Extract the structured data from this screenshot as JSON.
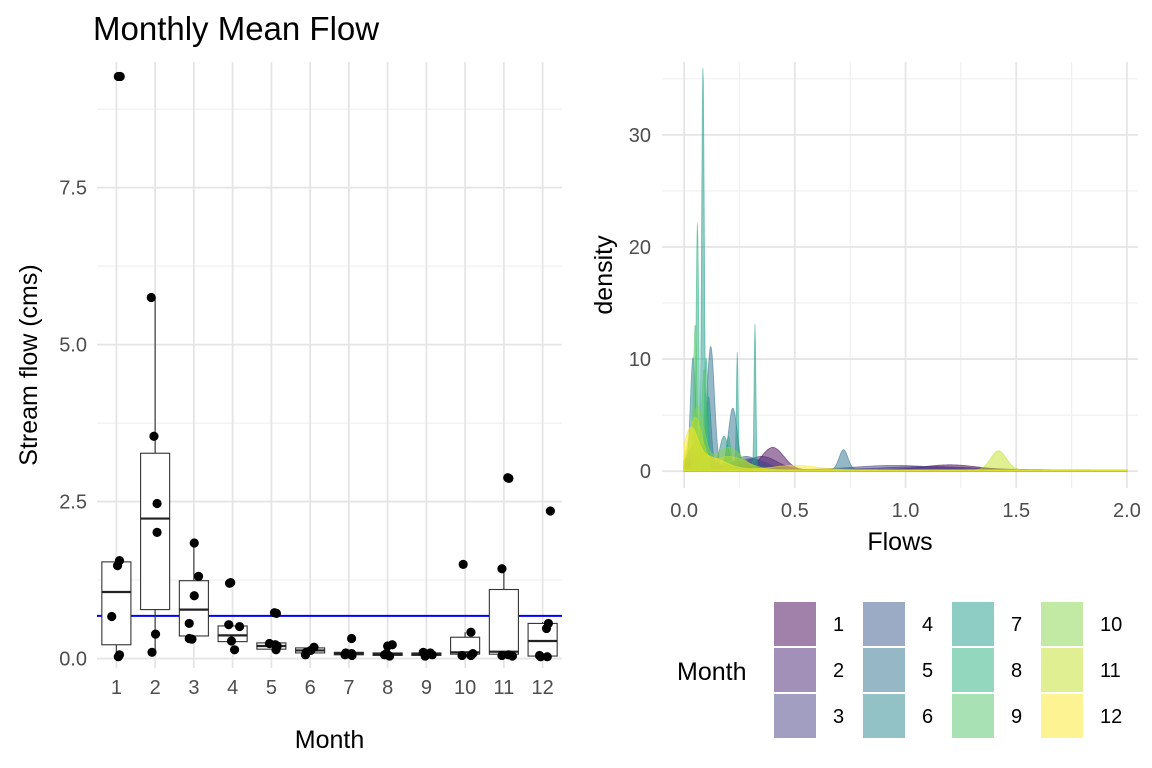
{
  "chart_data": [
    {
      "type": "boxplot",
      "title": "Monthly Mean Flow",
      "xlabel": "Month",
      "ylabel": "Stream flow (cms)",
      "categories": [
        "1",
        "2",
        "3",
        "4",
        "5",
        "6",
        "7",
        "8",
        "9",
        "10",
        "11",
        "12"
      ],
      "ylim": [
        -0.15,
        9.5
      ],
      "yticks": [
        0,
        2.5,
        5,
        7.5
      ],
      "ytick_labels": [
        "0.0",
        "2.5",
        "5.0",
        "7.5"
      ],
      "grid": true,
      "reference_line": {
        "y": 0.68,
        "color": "#0000ff"
      },
      "boxes": [
        {
          "month": "1",
          "q1": 0.22,
          "median": 1.06,
          "q3": 1.54,
          "lower": 0.05,
          "upper": 1.56
        },
        {
          "month": "2",
          "q1": 0.78,
          "median": 2.23,
          "q3": 3.27,
          "lower": 0.1,
          "upper": 5.75
        },
        {
          "month": "3",
          "q1": 0.36,
          "median": 0.78,
          "q3": 1.24,
          "lower": 0.32,
          "upper": 1.84
        },
        {
          "month": "4",
          "q1": 0.27,
          "median": 0.37,
          "q3": 0.52,
          "lower": 0.25,
          "upper": 0.52
        },
        {
          "month": "5",
          "q1": 0.15,
          "median": 0.2,
          "q3": 0.25,
          "lower": 0.15,
          "upper": 0.25
        },
        {
          "month": "6",
          "q1": 0.09,
          "median": 0.13,
          "q3": 0.17,
          "lower": 0.06,
          "upper": 0.2
        },
        {
          "month": "7",
          "q1": 0.06,
          "median": 0.08,
          "q3": 0.1,
          "lower": 0.05,
          "upper": 0.1
        },
        {
          "month": "8",
          "q1": 0.05,
          "median": 0.07,
          "q3": 0.09,
          "lower": 0.04,
          "upper": 0.09
        },
        {
          "month": "9",
          "q1": 0.05,
          "median": 0.07,
          "q3": 0.09,
          "lower": 0.04,
          "upper": 0.09
        },
        {
          "month": "10",
          "q1": 0.07,
          "median": 0.1,
          "q3": 0.34,
          "lower": 0.04,
          "upper": 0.42
        },
        {
          "month": "11",
          "q1": 0.07,
          "median": 0.11,
          "q3": 1.1,
          "lower": 0.03,
          "upper": 1.43
        },
        {
          "month": "12",
          "q1": 0.04,
          "median": 0.28,
          "q3": 0.56,
          "lower": 0.03,
          "upper": 0.58
        }
      ],
      "points": [
        {
          "month": "1",
          "j": 0.05,
          "y": 9.27
        },
        {
          "month": "1",
          "j": 0.08,
          "y": 1.56
        },
        {
          "month": "1",
          "j": 0.03,
          "y": 1.48
        },
        {
          "month": "1",
          "j": -0.12,
          "y": 0.67
        },
        {
          "month": "1",
          "j": 0.08,
          "y": 0.06
        },
        {
          "month": "1",
          "j": 0.05,
          "y": 0.03
        },
        {
          "month": "1",
          "j": 0.1,
          "y": 9.27
        },
        {
          "month": "2",
          "j": -0.1,
          "y": 5.75
        },
        {
          "month": "2",
          "j": -0.03,
          "y": 3.54
        },
        {
          "month": "2",
          "j": 0.05,
          "y": 2.47
        },
        {
          "month": "2",
          "j": 0.05,
          "y": 2.01
        },
        {
          "month": "2",
          "j": 0.01,
          "y": 0.39
        },
        {
          "month": "2",
          "j": -0.08,
          "y": 0.1
        },
        {
          "month": "3",
          "j": 0.01,
          "y": 1.84
        },
        {
          "month": "3",
          "j": 0.12,
          "y": 1.31
        },
        {
          "month": "3",
          "j": 0.01,
          "y": 1.0
        },
        {
          "month": "3",
          "j": -0.12,
          "y": 0.56
        },
        {
          "month": "3",
          "j": -0.12,
          "y": 0.32
        },
        {
          "month": "3",
          "j": -0.05,
          "y": 0.31
        },
        {
          "month": "4",
          "j": -0.08,
          "y": 1.2
        },
        {
          "month": "4",
          "j": -0.05,
          "y": 1.21
        },
        {
          "month": "4",
          "j": 0.18,
          "y": 0.51
        },
        {
          "month": "4",
          "j": -0.1,
          "y": 0.54
        },
        {
          "month": "4",
          "j": -0.03,
          "y": 0.28
        },
        {
          "month": "4",
          "j": 0.05,
          "y": 0.14
        },
        {
          "month": "5",
          "j": 0.08,
          "y": 0.73
        },
        {
          "month": "5",
          "j": 0.13,
          "y": 0.72
        },
        {
          "month": "5",
          "j": -0.05,
          "y": 0.24
        },
        {
          "month": "5",
          "j": 0.1,
          "y": 0.22
        },
        {
          "month": "5",
          "j": 0.15,
          "y": 0.2
        },
        {
          "month": "5",
          "j": 0.12,
          "y": 0.14
        },
        {
          "month": "6",
          "j": 0.1,
          "y": 0.18
        },
        {
          "month": "6",
          "j": 0.02,
          "y": 0.13
        },
        {
          "month": "6",
          "j": -0.1,
          "y": 0.1
        },
        {
          "month": "6",
          "j": -0.12,
          "y": 0.06
        },
        {
          "month": "7",
          "j": 0.07,
          "y": 0.32
        },
        {
          "month": "7",
          "j": -0.08,
          "y": 0.09
        },
        {
          "month": "7",
          "j": 0.07,
          "y": 0.08
        },
        {
          "month": "7",
          "j": -0.1,
          "y": 0.06
        },
        {
          "month": "7",
          "j": 0.08,
          "y": 0.05
        },
        {
          "month": "8",
          "j": 0.0,
          "y": 0.2
        },
        {
          "month": "8",
          "j": 0.12,
          "y": 0.22
        },
        {
          "month": "8",
          "j": -0.03,
          "y": 0.08
        },
        {
          "month": "8",
          "j": -0.08,
          "y": 0.06
        },
        {
          "month": "8",
          "j": 0.05,
          "y": 0.04
        },
        {
          "month": "9",
          "j": -0.08,
          "y": 0.1
        },
        {
          "month": "9",
          "j": 0.1,
          "y": 0.09
        },
        {
          "month": "9",
          "j": 0.15,
          "y": 0.06
        },
        {
          "month": "9",
          "j": -0.03,
          "y": 0.04
        },
        {
          "month": "10",
          "j": -0.05,
          "y": 1.5
        },
        {
          "month": "10",
          "j": 0.15,
          "y": 0.42
        },
        {
          "month": "10",
          "j": 0.2,
          "y": 0.08
        },
        {
          "month": "10",
          "j": -0.08,
          "y": 0.05
        },
        {
          "month": "10",
          "j": 0.15,
          "y": 0.05
        },
        {
          "month": "11",
          "j": 0.1,
          "y": 2.88
        },
        {
          "month": "11",
          "j": 0.13,
          "y": 2.87
        },
        {
          "month": "11",
          "j": -0.05,
          "y": 1.43
        },
        {
          "month": "11",
          "j": 0.12,
          "y": 0.06
        },
        {
          "month": "11",
          "j": -0.05,
          "y": 0.05
        },
        {
          "month": "11",
          "j": 0.22,
          "y": 0.04
        },
        {
          "month": "12",
          "j": 0.2,
          "y": 2.35
        },
        {
          "month": "12",
          "j": 0.15,
          "y": 0.56
        },
        {
          "month": "12",
          "j": 0.1,
          "y": 0.48
        },
        {
          "month": "12",
          "j": -0.08,
          "y": 0.05
        },
        {
          "month": "12",
          "j": 0.12,
          "y": 0.03
        },
        {
          "month": "12",
          "j": -0.05,
          "y": 0.03
        }
      ]
    },
    {
      "type": "area",
      "xlabel": "Flows",
      "ylabel": "density",
      "xlim": [
        -0.1,
        2.05
      ],
      "ylim": [
        -1.5,
        36.5
      ],
      "xticks": [
        0,
        0.5,
        1,
        1.5,
        2
      ],
      "xtick_labels": [
        "0.0",
        "0.5",
        "1.0",
        "1.5",
        "2.0"
      ],
      "yticks": [
        0,
        10,
        20,
        30
      ],
      "ytick_labels": [
        "0",
        "10",
        "20",
        "30"
      ],
      "grid": true,
      "legend": {
        "title": "Month",
        "position": "bottom",
        "ncol": 4
      },
      "series": [
        {
          "name": "1",
          "color": "#440154",
          "peaks": [
            [
              0.05,
              1.5,
              0.03
            ],
            [
              0.4,
              2.0,
              0.05
            ],
            [
              1.2,
              0.45,
              0.12
            ]
          ]
        },
        {
          "name": "2",
          "color": "#482173",
          "peaks": [
            [
              0.08,
              1.4,
              0.05
            ],
            [
              0.35,
              1.2,
              0.07
            ],
            [
              1.1,
              0.3,
              0.2
            ]
          ]
        },
        {
          "name": "3",
          "color": "#433e85",
          "peaks": [
            [
              0.06,
              1.6,
              0.05
            ],
            [
              0.3,
              1.0,
              0.07
            ],
            [
              0.95,
              0.4,
              0.18
            ]
          ]
        },
        {
          "name": "4",
          "color": "#38588c",
          "peaks": [
            [
              0.06,
              2.5,
              0.04
            ],
            [
              0.28,
              1.2,
              0.06
            ]
          ]
        },
        {
          "name": "5",
          "color": "#2d708e",
          "peaks": [
            [
              0.12,
              11.0,
              0.017
            ],
            [
              0.22,
              5.5,
              0.02
            ],
            [
              0.72,
              1.8,
              0.02
            ]
          ]
        },
        {
          "name": "6",
          "color": "#25858e",
          "peaks": [
            [
              0.04,
              10.0,
              0.012
            ],
            [
              0.11,
              6.5,
              0.012
            ],
            [
              0.18,
              3.0,
              0.02
            ]
          ]
        },
        {
          "name": "7",
          "color": "#1e9b8a",
          "peaks": [
            [
              0.085,
              36.0,
              0.006
            ],
            [
              0.24,
              10.5,
              0.004
            ],
            [
              0.32,
              13.0,
              0.004
            ]
          ]
        },
        {
          "name": "8",
          "color": "#2ab07f",
          "peaks": [
            [
              0.06,
              22.0,
              0.006
            ],
            [
              0.1,
              10.0,
              0.008
            ],
            [
              0.2,
              3.0,
              0.01
            ]
          ]
        },
        {
          "name": "9",
          "color": "#52c569",
          "peaks": [
            [
              0.05,
              13.0,
              0.008
            ],
            [
              0.09,
              9.0,
              0.01
            ]
          ]
        },
        {
          "name": "10",
          "color": "#86d549",
          "peaks": [
            [
              0.06,
              5.5,
              0.03
            ],
            [
              0.2,
              2.0,
              0.06
            ]
          ]
        },
        {
          "name": "11",
          "color": "#c2df23",
          "peaks": [
            [
              0.05,
              4.5,
              0.03
            ],
            [
              0.2,
              1.2,
              0.08
            ],
            [
              1.42,
              1.7,
              0.035
            ]
          ]
        },
        {
          "name": "12",
          "color": "#fde725",
          "peaks": [
            [
              0.03,
              3.0,
              0.03
            ],
            [
              0.1,
              1.2,
              0.08
            ],
            [
              0.5,
              0.4,
              0.1
            ]
          ]
        }
      ]
    }
  ]
}
